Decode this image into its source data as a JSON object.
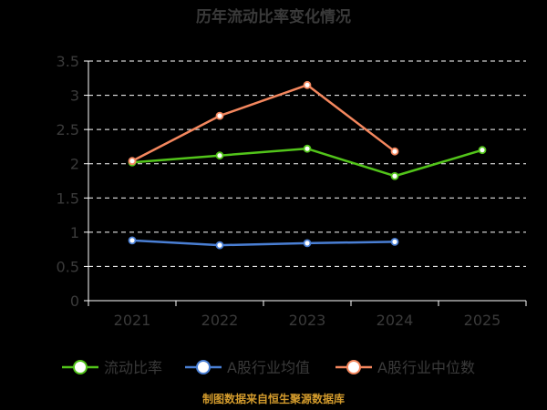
{
  "title": "历年流动比率变化情况",
  "source": "制图数据来自恒生聚源数据库",
  "colors": {
    "background": "#000000",
    "grid": "#ffffff",
    "axis": "#ffffff",
    "text": "#3a3a3a",
    "source": "#d39b2c"
  },
  "chart_data": {
    "type": "line",
    "title": "历年流动比率变化情况",
    "categories": [
      "2021",
      "2022",
      "2023",
      "2024",
      "2025"
    ],
    "ylim": [
      0,
      3.5
    ],
    "yticks": [
      0,
      0.5,
      1,
      1.5,
      2,
      2.5,
      3,
      3.5
    ],
    "ytick_labels": [
      "0",
      "0.5",
      "1",
      "1.5",
      "2",
      "2.5",
      "3",
      "3.5"
    ],
    "grid": "horizontal dashed",
    "legend_position": "bottom",
    "series": [
      {
        "name": "流动比率",
        "color": "#52c41a",
        "values": [
          2.02,
          2.12,
          2.22,
          1.82,
          2.2
        ]
      },
      {
        "name": "A股行业均值",
        "color": "#4a7fd4",
        "values": [
          0.88,
          0.81,
          0.84,
          0.86,
          null
        ]
      },
      {
        "name": "A股行业中位数",
        "color": "#f4875e",
        "values": [
          2.04,
          2.7,
          3.15,
          2.18,
          null
        ]
      }
    ]
  }
}
